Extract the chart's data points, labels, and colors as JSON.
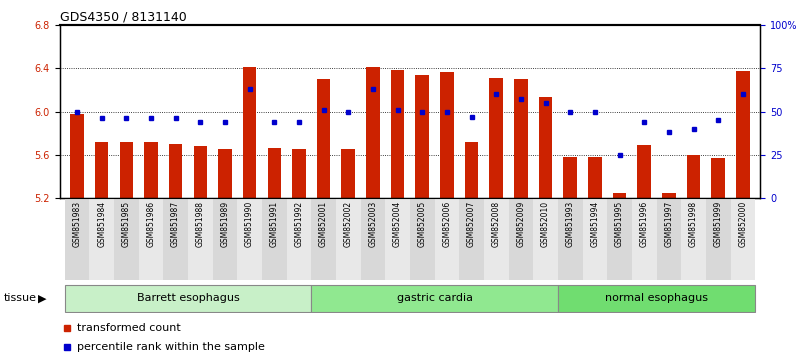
{
  "title": "GDS4350 / 8131140",
  "samples": [
    "GSM851983",
    "GSM851984",
    "GSM851985",
    "GSM851986",
    "GSM851987",
    "GSM851988",
    "GSM851989",
    "GSM851990",
    "GSM851991",
    "GSM851992",
    "GSM852001",
    "GSM852002",
    "GSM852003",
    "GSM852004",
    "GSM852005",
    "GSM852006",
    "GSM852007",
    "GSM852008",
    "GSM852009",
    "GSM852010",
    "GSM851993",
    "GSM851994",
    "GSM851995",
    "GSM851996",
    "GSM851997",
    "GSM851998",
    "GSM851999",
    "GSM852000"
  ],
  "transformed_count": [
    5.98,
    5.72,
    5.72,
    5.72,
    5.7,
    5.68,
    5.65,
    6.41,
    5.66,
    5.65,
    6.3,
    5.65,
    6.41,
    6.38,
    6.34,
    6.36,
    5.72,
    6.31,
    6.3,
    6.13,
    5.58,
    5.58,
    5.25,
    5.69,
    5.25,
    5.6,
    5.57,
    6.37
  ],
  "percentile_rank": [
    50,
    46,
    46,
    46,
    46,
    44,
    44,
    63,
    44,
    44,
    51,
    50,
    63,
    51,
    50,
    50,
    47,
    60,
    57,
    55,
    50,
    50,
    25,
    44,
    38,
    40,
    45,
    60
  ],
  "groups": [
    {
      "name": "Barrett esophagus",
      "start": 0,
      "end": 9,
      "color": "#c8f0c8"
    },
    {
      "name": "gastric cardia",
      "start": 10,
      "end": 19,
      "color": "#90e890"
    },
    {
      "name": "normal esophagus",
      "start": 20,
      "end": 27,
      "color": "#70dd70"
    }
  ],
  "bar_color": "#cc2200",
  "dot_color": "#0000cc",
  "ymin": 5.2,
  "ymax": 6.8,
  "yticks": [
    5.2,
    5.6,
    6.0,
    6.4,
    6.8
  ],
  "right_yticks": [
    0,
    25,
    50,
    75,
    100
  ],
  "right_ytick_labels": [
    "0",
    "25",
    "50",
    "75",
    "100%"
  ],
  "tick_label_fontsize": 7,
  "bar_width": 0.55
}
